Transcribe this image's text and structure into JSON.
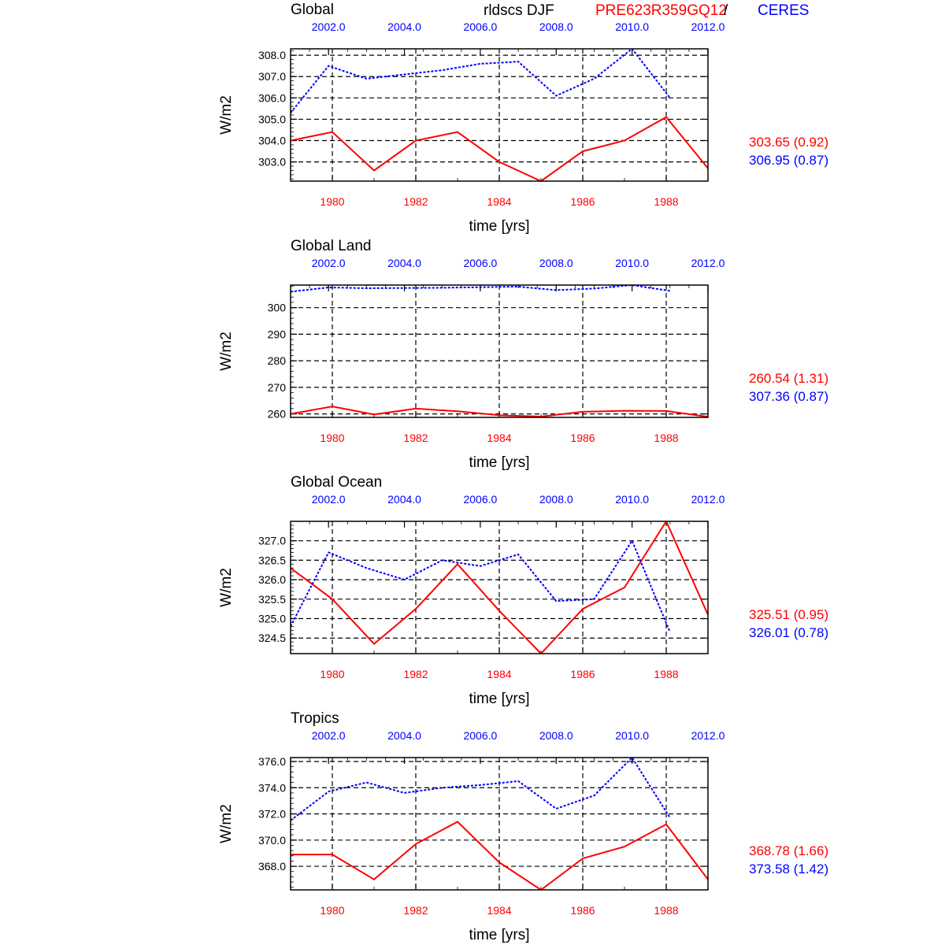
{
  "header": {
    "region_first": "Global",
    "variable": "rldscs DJF",
    "model_name": "PRE623R359GQ12",
    "separator": "/",
    "obs_name": "CERES",
    "colors": {
      "model": "#ff0000",
      "obs": "#0000ff"
    }
  },
  "chart_data": [
    {
      "type": "line",
      "title": "Global",
      "ylabel": "W/m2",
      "xlabel": "time [yrs]",
      "ylim": [
        302.1,
        308.3
      ],
      "yticks": [
        303.0,
        304.0,
        305.0,
        306.0,
        307.0,
        308.0
      ],
      "ytick_labels": [
        "303.0",
        "304.0",
        "305.0",
        "306.0",
        "307.0",
        "308.0"
      ],
      "model_xticks": [
        "1980",
        "1982",
        "1984",
        "1986",
        "1988"
      ],
      "obs_xticks": [
        "2002.0",
        "2004.0",
        "2006.0",
        "2008.0",
        "2010.0",
        "2012.0"
      ],
      "grid": true,
      "series": [
        {
          "name": "PRE623R359GQ12",
          "axis": "model",
          "style": "solid",
          "x": [
            1979,
            1980,
            1981,
            1982,
            1983,
            1984,
            1985,
            1986,
            1987,
            1988,
            1989
          ],
          "values": [
            304.0,
            304.4,
            302.6,
            304.0,
            304.4,
            303.0,
            302.1,
            303.5,
            304.0,
            305.1,
            302.7
          ]
        },
        {
          "name": "CERES",
          "axis": "obs",
          "style": "dashed",
          "x": [
            2001,
            2002,
            2003,
            2004,
            2005,
            2006,
            2007,
            2008,
            2009,
            2010,
            2011
          ],
          "values": [
            305.3,
            307.5,
            306.9,
            307.1,
            307.3,
            307.6,
            307.7,
            306.1,
            306.9,
            308.3,
            306.0
          ]
        }
      ],
      "stats": {
        "model": "303.65 (0.92)",
        "obs": "306.95 (0.87)"
      }
    },
    {
      "type": "line",
      "title": "Global Land",
      "ylabel": "W/m2",
      "xlabel": "time [yrs]",
      "ylim": [
        258.7,
        308.5
      ],
      "yticks": [
        260,
        270,
        280,
        290,
        300
      ],
      "ytick_labels": [
        "260",
        "270",
        "280",
        "290",
        "300"
      ],
      "model_xticks": [
        "1980",
        "1982",
        "1984",
        "1986",
        "1988"
      ],
      "obs_xticks": [
        "2002.0",
        "2004.0",
        "2006.0",
        "2008.0",
        "2010.0",
        "2012.0"
      ],
      "grid": true,
      "series": [
        {
          "name": "PRE623R359GQ12",
          "axis": "model",
          "style": "solid",
          "x": [
            1979,
            1980,
            1981,
            1982,
            1983,
            1984,
            1985,
            1986,
            1987,
            1988,
            1989
          ],
          "values": [
            260.0,
            262.8,
            259.8,
            262.0,
            261.0,
            259.5,
            259.0,
            260.8,
            261.2,
            261.1,
            258.9
          ]
        },
        {
          "name": "CERES",
          "axis": "obs",
          "style": "dashed",
          "x": [
            2001,
            2002,
            2003,
            2004,
            2005,
            2006,
            2007,
            2008,
            2009,
            2010,
            2011
          ],
          "values": [
            306.0,
            307.6,
            307.3,
            307.4,
            307.5,
            307.7,
            307.9,
            306.6,
            307.2,
            308.5,
            306.3
          ]
        }
      ],
      "stats": {
        "model": "260.54 (1.31)",
        "obs": "307.36 (0.87)"
      }
    },
    {
      "type": "line",
      "title": "Global Ocean",
      "ylabel": "W/m2",
      "xlabel": "time [yrs]",
      "ylim": [
        324.1,
        327.5
      ],
      "yticks": [
        324.5,
        325.0,
        325.5,
        326.0,
        326.5,
        327.0
      ],
      "ytick_labels": [
        "324.5",
        "325.0",
        "325.5",
        "326.0",
        "326.5",
        "327.0"
      ],
      "model_xticks": [
        "1980",
        "1982",
        "1984",
        "1986",
        "1988"
      ],
      "obs_xticks": [
        "2002.0",
        "2004.0",
        "2006.0",
        "2008.0",
        "2010.0",
        "2012.0"
      ],
      "grid": true,
      "series": [
        {
          "name": "PRE623R359GQ12",
          "axis": "model",
          "style": "solid",
          "x": [
            1979,
            1980,
            1981,
            1982,
            1983,
            1984,
            1985,
            1986,
            1987,
            1988,
            1989
          ],
          "values": [
            326.3,
            325.5,
            324.35,
            325.25,
            326.4,
            325.2,
            324.1,
            325.25,
            325.8,
            327.5,
            325.1
          ]
        },
        {
          "name": "CERES",
          "axis": "obs",
          "style": "dashed",
          "x": [
            2001,
            2002,
            2003,
            2004,
            2005,
            2006,
            2007,
            2008,
            2009,
            2010,
            2011
          ],
          "values": [
            324.8,
            326.7,
            326.3,
            326.0,
            326.5,
            326.35,
            326.65,
            325.45,
            325.5,
            327.0,
            324.65
          ]
        }
      ],
      "stats": {
        "model": "325.51 (0.95)",
        "obs": "326.01 (0.78)"
      }
    },
    {
      "type": "line",
      "title": "Tropics",
      "ylabel": "W/m2",
      "xlabel": "time [yrs]",
      "ylim": [
        366.2,
        376.3
      ],
      "yticks": [
        368.0,
        370.0,
        372.0,
        374.0,
        376.0
      ],
      "ytick_labels": [
        "368.0",
        "370.0",
        "372.0",
        "374.0",
        "376.0"
      ],
      "model_xticks": [
        "1980",
        "1982",
        "1984",
        "1986",
        "1988"
      ],
      "obs_xticks": [
        "2002.0",
        "2004.0",
        "2006.0",
        "2008.0",
        "2010.0",
        "2012.0"
      ],
      "grid": true,
      "series": [
        {
          "name": "PRE623R359GQ12",
          "axis": "model",
          "style": "solid",
          "x": [
            1979,
            1980,
            1981,
            1982,
            1983,
            1984,
            1985,
            1986,
            1987,
            1988,
            1989
          ],
          "values": [
            368.9,
            368.9,
            367.0,
            369.7,
            371.4,
            368.3,
            366.2,
            368.6,
            369.5,
            371.2,
            367.0
          ]
        },
        {
          "name": "CERES",
          "axis": "obs",
          "style": "dashed",
          "x": [
            2001,
            2002,
            2003,
            2004,
            2005,
            2006,
            2007,
            2008,
            2009,
            2010,
            2011
          ],
          "values": [
            371.5,
            373.7,
            374.4,
            373.6,
            374.0,
            374.2,
            374.5,
            372.4,
            373.4,
            376.3,
            371.7
          ]
        }
      ],
      "stats": {
        "model": "368.78 (1.66)",
        "obs": "373.58 (1.42)"
      }
    }
  ]
}
